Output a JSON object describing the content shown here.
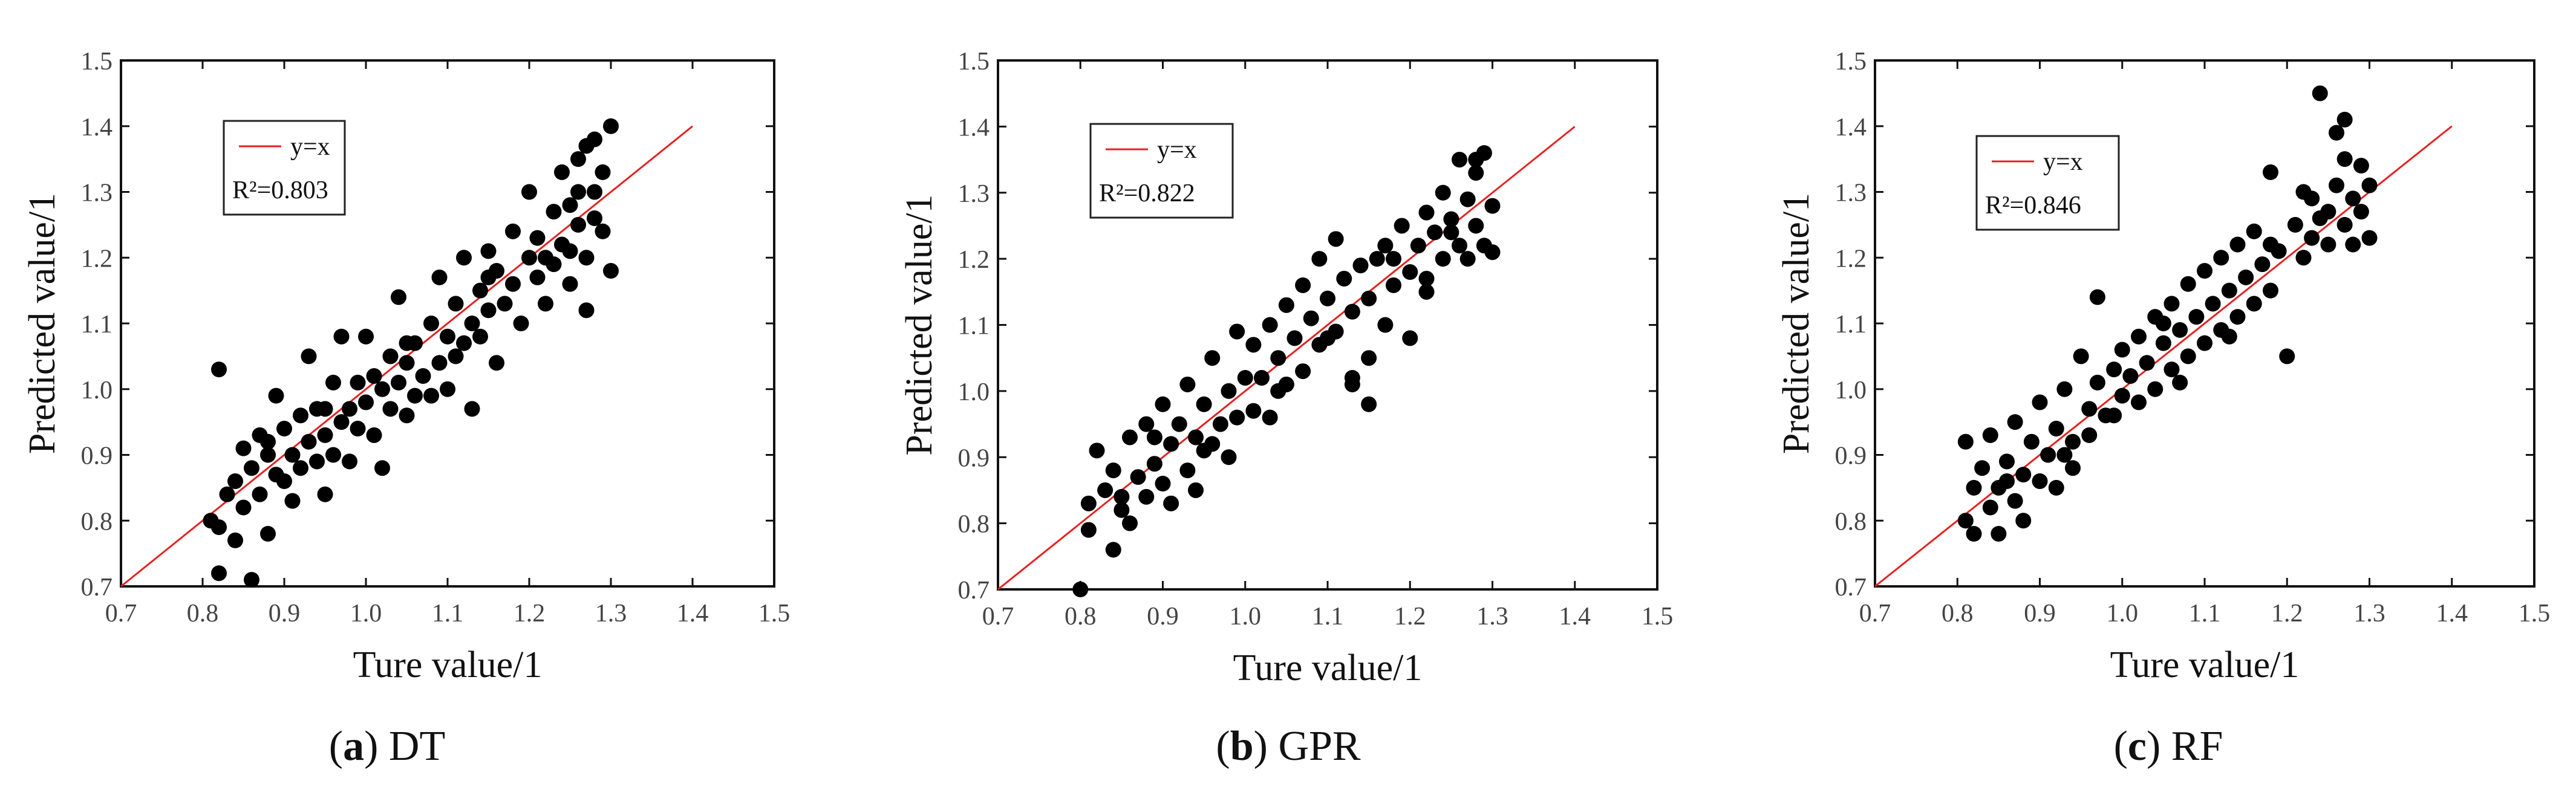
{
  "chart_data": [
    {
      "type": "scatter",
      "caption": {
        "letter": "a",
        "model": "DT"
      },
      "xlabel": "Ture value/1",
      "ylabel": "Predicted value/1",
      "xlim": [
        0.7,
        1.5
      ],
      "ylim": [
        0.7,
        1.5
      ],
      "xticks": [
        "0.7",
        "0.8",
        "0.9",
        "1.0",
        "1.1",
        "1.2",
        "1.3",
        "1.4",
        "1.5"
      ],
      "yticks": [
        "0.7",
        "0.8",
        "0.9",
        "1.0",
        "1.1",
        "1.2",
        "1.3",
        "1.4",
        "1.5"
      ],
      "reference_line": {
        "label": "y=x",
        "from": [
          0.7,
          0.7
        ],
        "to": [
          1.4,
          1.4
        ],
        "color": "#e8201f"
      },
      "r2_label": "R²=0.803",
      "r2": 0.803,
      "legend_position": "top-left",
      "marker_color": "#000000",
      "points": [
        [
          0.81,
          0.8
        ],
        [
          0.82,
          0.72
        ],
        [
          0.82,
          0.79
        ],
        [
          0.82,
          1.03
        ],
        [
          0.83,
          0.84
        ],
        [
          0.84,
          0.86
        ],
        [
          0.84,
          0.77
        ],
        [
          0.85,
          0.91
        ],
        [
          0.85,
          0.82
        ],
        [
          0.86,
          0.88
        ],
        [
          0.86,
          0.71
        ],
        [
          0.87,
          0.93
        ],
        [
          0.87,
          0.84
        ],
        [
          0.88,
          0.9
        ],
        [
          0.88,
          0.78
        ],
        [
          0.89,
          0.87
        ],
        [
          0.89,
          0.99
        ],
        [
          0.9,
          0.86
        ],
        [
          0.9,
          0.94
        ],
        [
          0.91,
          0.83
        ],
        [
          0.91,
          0.9
        ],
        [
          0.92,
          0.96
        ],
        [
          0.92,
          0.88
        ],
        [
          0.93,
          1.05
        ],
        [
          0.93,
          0.92
        ],
        [
          0.94,
          0.89
        ],
        [
          0.94,
          0.97
        ],
        [
          0.95,
          0.93
        ],
        [
          0.95,
          0.84
        ],
        [
          0.96,
          1.01
        ],
        [
          0.96,
          0.9
        ],
        [
          0.97,
          0.95
        ],
        [
          0.97,
          1.08
        ],
        [
          0.98,
          0.97
        ],
        [
          0.98,
          0.89
        ],
        [
          0.99,
          1.01
        ],
        [
          0.99,
          0.94
        ],
        [
          1.0,
          0.98
        ],
        [
          1.0,
          1.08
        ],
        [
          1.01,
          0.93
        ],
        [
          1.01,
          1.02
        ],
        [
          1.02,
          1.0
        ],
        [
          1.02,
          0.88
        ],
        [
          1.03,
          1.05
        ],
        [
          1.03,
          0.97
        ],
        [
          1.04,
          1.01
        ],
        [
          1.04,
          1.14
        ],
        [
          1.05,
          0.96
        ],
        [
          1.05,
          1.04
        ],
        [
          1.06,
          1.07
        ],
        [
          1.06,
          0.99
        ],
        [
          1.07,
          1.02
        ],
        [
          1.08,
          1.1
        ],
        [
          1.08,
          0.99
        ],
        [
          1.09,
          1.04
        ],
        [
          1.09,
          1.17
        ],
        [
          1.1,
          1.08
        ],
        [
          1.1,
          1.0
        ],
        [
          1.11,
          1.13
        ],
        [
          1.11,
          1.05
        ],
        [
          1.12,
          1.2
        ],
        [
          1.12,
          1.07
        ],
        [
          1.13,
          1.1
        ],
        [
          1.13,
          0.97
        ],
        [
          1.14,
          1.15
        ],
        [
          1.14,
          1.08
        ],
        [
          1.15,
          1.21
        ],
        [
          1.15,
          1.12
        ],
        [
          1.16,
          1.04
        ],
        [
          1.16,
          1.18
        ],
        [
          1.17,
          1.13
        ],
        [
          1.18,
          1.24
        ],
        [
          1.18,
          1.16
        ],
        [
          1.19,
          1.1
        ],
        [
          1.2,
          1.2
        ],
        [
          1.2,
          1.3
        ],
        [
          1.21,
          1.17
        ],
        [
          1.21,
          1.23
        ],
        [
          1.22,
          1.13
        ],
        [
          1.23,
          1.27
        ],
        [
          1.23,
          1.19
        ],
        [
          1.24,
          1.33
        ],
        [
          1.24,
          1.22
        ],
        [
          1.25,
          1.16
        ],
        [
          1.25,
          1.28
        ],
        [
          1.26,
          1.25
        ],
        [
          1.26,
          1.35
        ],
        [
          1.27,
          1.2
        ],
        [
          1.27,
          1.12
        ],
        [
          1.28,
          1.3
        ],
        [
          1.28,
          1.38
        ],
        [
          1.29,
          1.24
        ],
        [
          1.29,
          1.33
        ],
        [
          1.3,
          1.4
        ],
        [
          1.3,
          1.18
        ],
        [
          1.27,
          1.37
        ],
        [
          1.28,
          1.26
        ],
        [
          1.22,
          1.2
        ],
        [
          1.15,
          1.17
        ],
        [
          1.05,
          1.07
        ],
        [
          0.95,
          0.97
        ],
        [
          0.88,
          0.92
        ],
        [
          1.25,
          1.21
        ],
        [
          1.26,
          1.3
        ]
      ]
    },
    {
      "type": "scatter",
      "caption": {
        "letter": "b",
        "model": "GPR"
      },
      "xlabel": "Ture value/1",
      "ylabel": "Predicted value/1",
      "xlim": [
        0.7,
        1.5
      ],
      "ylim": [
        0.7,
        1.5
      ],
      "xticks": [
        "0.7",
        "0.8",
        "0.9",
        "1.0",
        "1.1",
        "1.2",
        "1.3",
        "1.4",
        "1.5"
      ],
      "yticks": [
        "0.7",
        "0.8",
        "0.9",
        "1.0",
        "1.1",
        "1.2",
        "1.3",
        "1.4",
        "1.5"
      ],
      "reference_line": {
        "label": "y=x",
        "from": [
          0.7,
          0.7
        ],
        "to": [
          1.4,
          1.4
        ],
        "color": "#e8201f"
      },
      "r2_label": "R²=0.822",
      "r2": 0.822,
      "legend_position": "top-left",
      "marker_color": "#000000",
      "points": [
        [
          0.8,
          0.7
        ],
        [
          0.81,
          0.83
        ],
        [
          0.81,
          0.79
        ],
        [
          0.82,
          0.91
        ],
        [
          0.83,
          0.85
        ],
        [
          0.84,
          0.76
        ],
        [
          0.84,
          0.88
        ],
        [
          0.85,
          0.82
        ],
        [
          0.86,
          0.93
        ],
        [
          0.86,
          0.8
        ],
        [
          0.87,
          0.87
        ],
        [
          0.88,
          0.84
        ],
        [
          0.88,
          0.95
        ],
        [
          0.89,
          0.89
        ],
        [
          0.9,
          0.86
        ],
        [
          0.9,
          0.98
        ],
        [
          0.91,
          0.92
        ],
        [
          0.91,
          0.83
        ],
        [
          0.92,
          0.95
        ],
        [
          0.93,
          0.88
        ],
        [
          0.93,
          1.01
        ],
        [
          0.94,
          0.93
        ],
        [
          0.94,
          0.85
        ],
        [
          0.95,
          0.98
        ],
        [
          0.96,
          0.92
        ],
        [
          0.96,
          1.05
        ],
        [
          0.97,
          0.95
        ],
        [
          0.98,
          1.0
        ],
        [
          0.98,
          0.9
        ],
        [
          0.99,
          1.09
        ],
        [
          0.99,
          0.96
        ],
        [
          1.0,
          1.02
        ],
        [
          1.01,
          0.97
        ],
        [
          1.01,
          1.07
        ],
        [
          1.02,
          1.02
        ],
        [
          1.03,
          1.1
        ],
        [
          1.03,
          0.96
        ],
        [
          1.04,
          1.05
        ],
        [
          1.05,
          1.13
        ],
        [
          1.05,
          1.01
        ],
        [
          1.06,
          1.08
        ],
        [
          1.07,
          1.16
        ],
        [
          1.07,
          1.03
        ],
        [
          1.08,
          1.11
        ],
        [
          1.09,
          1.2
        ],
        [
          1.09,
          1.07
        ],
        [
          1.1,
          1.14
        ],
        [
          1.11,
          1.23
        ],
        [
          1.11,
          1.09
        ],
        [
          1.12,
          1.17
        ],
        [
          1.13,
          1.12
        ],
        [
          1.13,
          1.02
        ],
        [
          1.14,
          1.19
        ],
        [
          1.15,
          1.14
        ],
        [
          1.15,
          1.05
        ],
        [
          1.16,
          1.2
        ],
        [
          1.17,
          1.1
        ],
        [
          1.17,
          1.22
        ],
        [
          1.18,
          1.16
        ],
        [
          1.19,
          1.25
        ],
        [
          1.2,
          1.18
        ],
        [
          1.2,
          1.08
        ],
        [
          1.21,
          1.22
        ],
        [
          1.22,
          1.27
        ],
        [
          1.22,
          1.17
        ],
        [
          1.23,
          1.24
        ],
        [
          1.24,
          1.3
        ],
        [
          1.24,
          1.2
        ],
        [
          1.25,
          1.26
        ],
        [
          1.26,
          1.22
        ],
        [
          1.26,
          1.35
        ],
        [
          1.27,
          1.29
        ],
        [
          1.27,
          1.2
        ],
        [
          1.28,
          1.33
        ],
        [
          1.28,
          1.25
        ],
        [
          1.29,
          1.22
        ],
        [
          1.29,
          1.36
        ],
        [
          1.3,
          1.28
        ],
        [
          1.3,
          1.21
        ],
        [
          1.28,
          1.35
        ],
        [
          1.25,
          1.24
        ],
        [
          1.15,
          0.98
        ],
        [
          1.13,
          1.01
        ],
        [
          1.04,
          1.0
        ],
        [
          0.95,
          0.91
        ],
        [
          0.89,
          0.93
        ],
        [
          0.85,
          0.84
        ],
        [
          1.1,
          1.08
        ],
        [
          1.18,
          1.2
        ],
        [
          1.22,
          1.15
        ]
      ]
    },
    {
      "type": "scatter",
      "caption": {
        "letter": "c",
        "model": "RF"
      },
      "xlabel": "Ture value/1",
      "ylabel": "Predicted value/1",
      "xlim": [
        0.7,
        1.5
      ],
      "ylim": [
        0.7,
        1.5
      ],
      "xticks": [
        "0.7",
        "0.8",
        "0.9",
        "1.0",
        "1.1",
        "1.2",
        "1.3",
        "1.4",
        "1.5"
      ],
      "yticks": [
        "0.7",
        "0.8",
        "0.9",
        "1.0",
        "1.1",
        "1.2",
        "1.3",
        "1.4",
        "1.5"
      ],
      "reference_line": {
        "label": "y=x",
        "from": [
          0.7,
          0.7
        ],
        "to": [
          1.4,
          1.4
        ],
        "color": "#e8201f"
      },
      "r2_label": "R²=0.846",
      "r2": 0.846,
      "legend_position": "top-left",
      "marker_color": "#000000",
      "points": [
        [
          0.81,
          0.92
        ],
        [
          0.81,
          0.8
        ],
        [
          0.82,
          0.85
        ],
        [
          0.82,
          0.78
        ],
        [
          0.83,
          0.88
        ],
        [
          0.84,
          0.82
        ],
        [
          0.84,
          0.93
        ],
        [
          0.85,
          0.85
        ],
        [
          0.85,
          0.78
        ],
        [
          0.86,
          0.89
        ],
        [
          0.87,
          0.83
        ],
        [
          0.87,
          0.95
        ],
        [
          0.88,
          0.87
        ],
        [
          0.88,
          0.8
        ],
        [
          0.89,
          0.92
        ],
        [
          0.9,
          0.86
        ],
        [
          0.9,
          0.98
        ],
        [
          0.91,
          0.9
        ],
        [
          0.92,
          0.94
        ],
        [
          0.92,
          0.85
        ],
        [
          0.93,
          1.0
        ],
        [
          0.94,
          0.92
        ],
        [
          0.94,
          0.88
        ],
        [
          0.95,
          1.05
        ],
        [
          0.96,
          0.97
        ],
        [
          0.96,
          0.93
        ],
        [
          0.97,
          1.14
        ],
        [
          0.97,
          1.01
        ],
        [
          0.98,
          0.96
        ],
        [
          0.99,
          1.03
        ],
        [
          1.0,
          0.99
        ],
        [
          1.0,
          1.06
        ],
        [
          1.01,
          1.02
        ],
        [
          1.02,
          0.98
        ],
        [
          1.02,
          1.08
        ],
        [
          1.03,
          1.04
        ],
        [
          1.04,
          1.11
        ],
        [
          1.04,
          1.0
        ],
        [
          1.05,
          1.07
        ],
        [
          1.06,
          1.03
        ],
        [
          1.06,
          1.13
        ],
        [
          1.07,
          1.09
        ],
        [
          1.08,
          1.05
        ],
        [
          1.08,
          1.16
        ],
        [
          1.09,
          1.11
        ],
        [
          1.1,
          1.07
        ],
        [
          1.1,
          1.18
        ],
        [
          1.11,
          1.13
        ],
        [
          1.12,
          1.09
        ],
        [
          1.12,
          1.2
        ],
        [
          1.13,
          1.15
        ],
        [
          1.14,
          1.22
        ],
        [
          1.14,
          1.11
        ],
        [
          1.15,
          1.17
        ],
        [
          1.16,
          1.13
        ],
        [
          1.16,
          1.24
        ],
        [
          1.17,
          1.19
        ],
        [
          1.18,
          1.15
        ],
        [
          1.18,
          1.33
        ],
        [
          1.19,
          1.21
        ],
        [
          1.2,
          1.05
        ],
        [
          1.21,
          1.25
        ],
        [
          1.22,
          1.2
        ],
        [
          1.23,
          1.29
        ],
        [
          1.23,
          1.23
        ],
        [
          1.24,
          1.45
        ],
        [
          1.25,
          1.27
        ],
        [
          1.25,
          1.22
        ],
        [
          1.26,
          1.31
        ],
        [
          1.26,
          1.39
        ],
        [
          1.27,
          1.25
        ],
        [
          1.27,
          1.41
        ],
        [
          1.28,
          1.29
        ],
        [
          1.28,
          1.22
        ],
        [
          1.29,
          1.34
        ],
        [
          1.29,
          1.27
        ],
        [
          1.3,
          1.31
        ],
        [
          1.3,
          1.23
        ],
        [
          1.27,
          1.35
        ],
        [
          1.22,
          1.3
        ],
        [
          1.13,
          1.08
        ],
        [
          1.07,
          1.01
        ],
        [
          0.99,
          0.96
        ],
        [
          0.93,
          0.9
        ],
        [
          0.86,
          0.86
        ],
        [
          1.18,
          1.22
        ],
        [
          1.24,
          1.26
        ],
        [
          1.05,
          1.1
        ]
      ]
    }
  ]
}
